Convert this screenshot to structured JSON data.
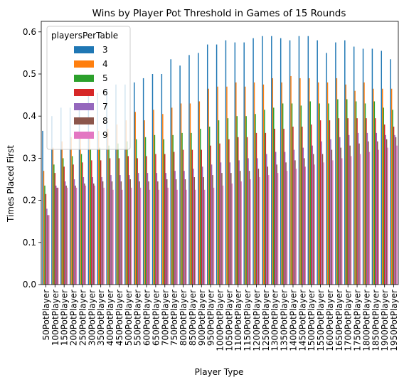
{
  "chart_data": {
    "type": "bar",
    "title": "Wins by Player Pot Threshold in Games of 15 Rounds",
    "xlabel": "Player Type",
    "ylabel": "Times Placed First",
    "ylim": [
      0,
      0.625
    ],
    "yticks": [
      "0.0",
      "0.1",
      "0.2",
      "0.3",
      "0.4",
      "0.5",
      "0.6"
    ],
    "grid": false,
    "legend": {
      "title": "playersPerTable",
      "placement": "upper-left",
      "entries": [
        "3",
        "4",
        "5",
        "6",
        "7",
        "8",
        "9"
      ]
    },
    "categories": [
      "50PotPlayer",
      "100PotPlayer",
      "150PotPlayer",
      "200PotPlayer",
      "250PotPlayer",
      "300PotPlayer",
      "350PotPlayer",
      "400PotPlayer",
      "450PotPlayer",
      "500PotPlayer",
      "550PotPlayer",
      "600PotPlayer",
      "650PotPlayer",
      "700PotPlayer",
      "750PotPlayer",
      "800PotPlayer",
      "850PotPlayer",
      "900PotPlayer",
      "950PotPlayer",
      "1000PotPlayer",
      "1050PotPlayer",
      "1100PotPlayer",
      "1150PotPlayer",
      "1200PotPlayer",
      "1250PotPlayer",
      "1300PotPlayer",
      "1350PotPlayer",
      "1400PotPlayer",
      "1450PotPlayer",
      "1500PotPlayer",
      "1550PotPlayer",
      "1600PotPlayer",
      "1650PotPlayer",
      "1700PotPlayer",
      "1750PotPlayer",
      "1800PotPlayer",
      "1850PotPlayer",
      "1900PotPlayer",
      "1950PotPlayer"
    ],
    "series": [
      {
        "name": "3",
        "color": "#1f77b4",
        "values": [
          0.365,
          0.4,
          0.42,
          0.42,
          0.43,
          0.45,
          0.455,
          0.465,
          0.475,
          0.475,
          0.48,
          0.49,
          0.5,
          0.5,
          0.535,
          0.52,
          0.545,
          0.55,
          0.57,
          0.57,
          0.58,
          0.575,
          0.575,
          0.585,
          0.59,
          0.59,
          0.585,
          0.58,
          0.59,
          0.59,
          0.58,
          0.55,
          0.575,
          0.58,
          0.565,
          0.56,
          0.56,
          0.555,
          0.535
        ]
      },
      {
        "name": "4",
        "color": "#ff7f0e",
        "values": [
          0.27,
          0.325,
          0.34,
          0.35,
          0.36,
          0.36,
          0.365,
          0.37,
          0.38,
          0.39,
          0.41,
          0.39,
          0.415,
          0.405,
          0.42,
          0.43,
          0.43,
          0.435,
          0.465,
          0.47,
          0.47,
          0.48,
          0.47,
          0.48,
          0.475,
          0.49,
          0.48,
          0.495,
          0.49,
          0.49,
          0.48,
          0.48,
          0.49,
          0.475,
          0.46,
          0.48,
          0.465,
          0.465,
          0.465
        ]
      },
      {
        "name": "5",
        "color": "#2ca02c",
        "values": [
          0.235,
          0.285,
          0.3,
          0.305,
          0.31,
          0.32,
          0.325,
          0.33,
          0.335,
          0.34,
          0.345,
          0.35,
          0.355,
          0.345,
          0.355,
          0.36,
          0.36,
          0.37,
          0.375,
          0.39,
          0.395,
          0.4,
          0.4,
          0.405,
          0.415,
          0.42,
          0.43,
          0.43,
          0.425,
          0.435,
          0.43,
          0.43,
          0.44,
          0.44,
          0.435,
          0.43,
          0.435,
          0.42,
          0.415
        ]
      },
      {
        "name": "6",
        "color": "#d62728",
        "values": [
          0.215,
          0.265,
          0.28,
          0.285,
          0.29,
          0.295,
          0.295,
          0.3,
          0.3,
          0.305,
          0.3,
          0.305,
          0.31,
          0.31,
          0.315,
          0.32,
          0.32,
          0.32,
          0.33,
          0.335,
          0.345,
          0.35,
          0.35,
          0.36,
          0.36,
          0.37,
          0.37,
          0.375,
          0.375,
          0.38,
          0.39,
          0.39,
          0.395,
          0.395,
          0.395,
          0.395,
          0.395,
          0.38,
          0.375
        ]
      },
      {
        "name": "7",
        "color": "#9467bd",
        "values": [
          0.18,
          0.235,
          0.245,
          0.25,
          0.255,
          0.255,
          0.255,
          0.26,
          0.26,
          0.26,
          0.265,
          0.265,
          0.265,
          0.265,
          0.27,
          0.27,
          0.275,
          0.28,
          0.285,
          0.29,
          0.29,
          0.295,
          0.3,
          0.3,
          0.31,
          0.315,
          0.315,
          0.32,
          0.325,
          0.33,
          0.34,
          0.345,
          0.35,
          0.355,
          0.36,
          0.36,
          0.36,
          0.355,
          0.355
        ]
      },
      {
        "name": "8",
        "color": "#8c564b",
        "values": [
          0.165,
          0.23,
          0.235,
          0.235,
          0.24,
          0.24,
          0.245,
          0.245,
          0.245,
          0.25,
          0.245,
          0.245,
          0.245,
          0.25,
          0.25,
          0.25,
          0.255,
          0.255,
          0.26,
          0.265,
          0.265,
          0.27,
          0.27,
          0.275,
          0.28,
          0.285,
          0.29,
          0.295,
          0.3,
          0.31,
          0.31,
          0.32,
          0.325,
          0.33,
          0.335,
          0.34,
          0.34,
          0.345,
          0.35
        ]
      },
      {
        "name": "9",
        "color": "#e377c2",
        "values": [
          0.165,
          0.23,
          0.23,
          0.23,
          0.235,
          0.235,
          0.23,
          0.225,
          0.225,
          0.23,
          0.23,
          0.225,
          0.225,
          0.23,
          0.225,
          0.225,
          0.225,
          0.225,
          0.23,
          0.235,
          0.24,
          0.245,
          0.25,
          0.255,
          0.26,
          0.265,
          0.27,
          0.275,
          0.28,
          0.285,
          0.29,
          0.295,
          0.3,
          0.305,
          0.31,
          0.315,
          0.32,
          0.325,
          0.33
        ]
      }
    ]
  }
}
